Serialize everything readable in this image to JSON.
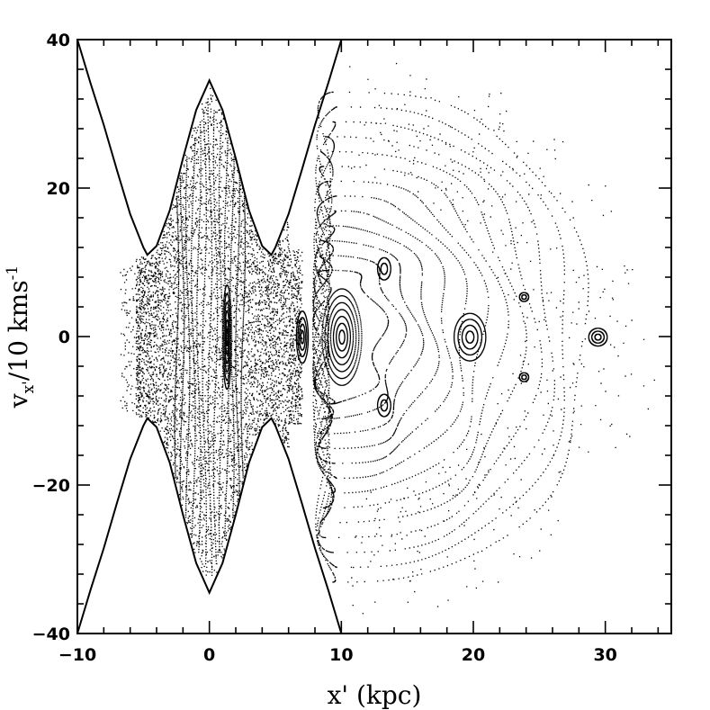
{
  "chart_data": {
    "type": "scatter",
    "title": "",
    "xlabel": "x' (kpc)",
    "ylabel": {
      "main": "v",
      "sub": "x'",
      "rest": "/10 kms",
      "sup": "-1"
    },
    "xlim": [
      -10,
      35
    ],
    "ylim": [
      -40,
      40
    ],
    "xticks": [
      -10,
      0,
      10,
      20,
      30
    ],
    "yticks": [
      -40,
      -20,
      0,
      20,
      40
    ],
    "xtick_labels": [
      "−10",
      "0",
      "10",
      "20",
      "30"
    ],
    "ytick_labels": [
      "−40",
      "−20",
      "0",
      "20",
      "40"
    ],
    "grid": false,
    "legend": "none",
    "colors": {
      "points": "#000000",
      "frame": "#000000",
      "background": "#ffffff"
    },
    "series": [
      {
        "kind": "zero-velocity-curve",
        "description_free": true,
        "points": [
          [
            -10,
            40
          ],
          [
            -9,
            34.1
          ],
          [
            -8,
            28.5
          ],
          [
            -7,
            22.4
          ],
          [
            -6,
            16.5
          ],
          [
            -5,
            12.0
          ],
          [
            -4.7,
            11.0
          ],
          [
            -4,
            12.2
          ],
          [
            -3,
            17.0
          ],
          [
            -2,
            24.0
          ],
          [
            -1,
            30.5
          ],
          [
            0,
            34.5
          ],
          [
            1,
            30.5
          ],
          [
            2,
            24.0
          ],
          [
            3,
            17.0
          ],
          [
            4,
            12.2
          ],
          [
            4.7,
            11.0
          ],
          [
            5,
            12.0
          ],
          [
            6,
            16.5
          ],
          [
            7,
            22.4
          ],
          [
            8,
            28.5
          ],
          [
            9,
            34.1
          ],
          [
            10,
            40
          ]
        ]
      }
    ],
    "islands": [
      {
        "cx": 1.3,
        "cy": 0,
        "rx_max": 0.35,
        "ry_max": 7,
        "rings": 6
      },
      {
        "cx": 7.0,
        "cy": 0,
        "rx_max": 0.45,
        "ry_max": 3.5,
        "rings": 4
      },
      {
        "cx": 10.0,
        "cy": 0,
        "rx_max": 1.5,
        "ry_max": 6.5,
        "rings": 7
      },
      {
        "cx": 19.7,
        "cy": 0,
        "rx_max": 1.2,
        "ry_max": 3.2,
        "rings": 4
      },
      {
        "cx": 29.4,
        "cy": 0,
        "rx_max": 0.7,
        "ry_max": 1.2,
        "rings": 3
      },
      {
        "cx": 13.2,
        "cy": 9.2,
        "rx_max": 0.5,
        "ry_max": 1.5,
        "rings": 2
      },
      {
        "cx": 13.2,
        "cy": -9.2,
        "rx_max": 0.5,
        "ry_max": 1.5,
        "rings": 2
      },
      {
        "cx": 23.8,
        "cy": 5.4,
        "rx_max": 0.35,
        "ry_max": 0.6,
        "rings": 2
      },
      {
        "cx": 23.8,
        "cy": -5.4,
        "rx_max": 0.35,
        "ry_max": 0.6,
        "rings": 2
      }
    ],
    "outer_curves": {
      "x_start": 10.5,
      "count": 13,
      "x_step": 1.3,
      "height_base": 9,
      "height_step": 2.0
    }
  }
}
